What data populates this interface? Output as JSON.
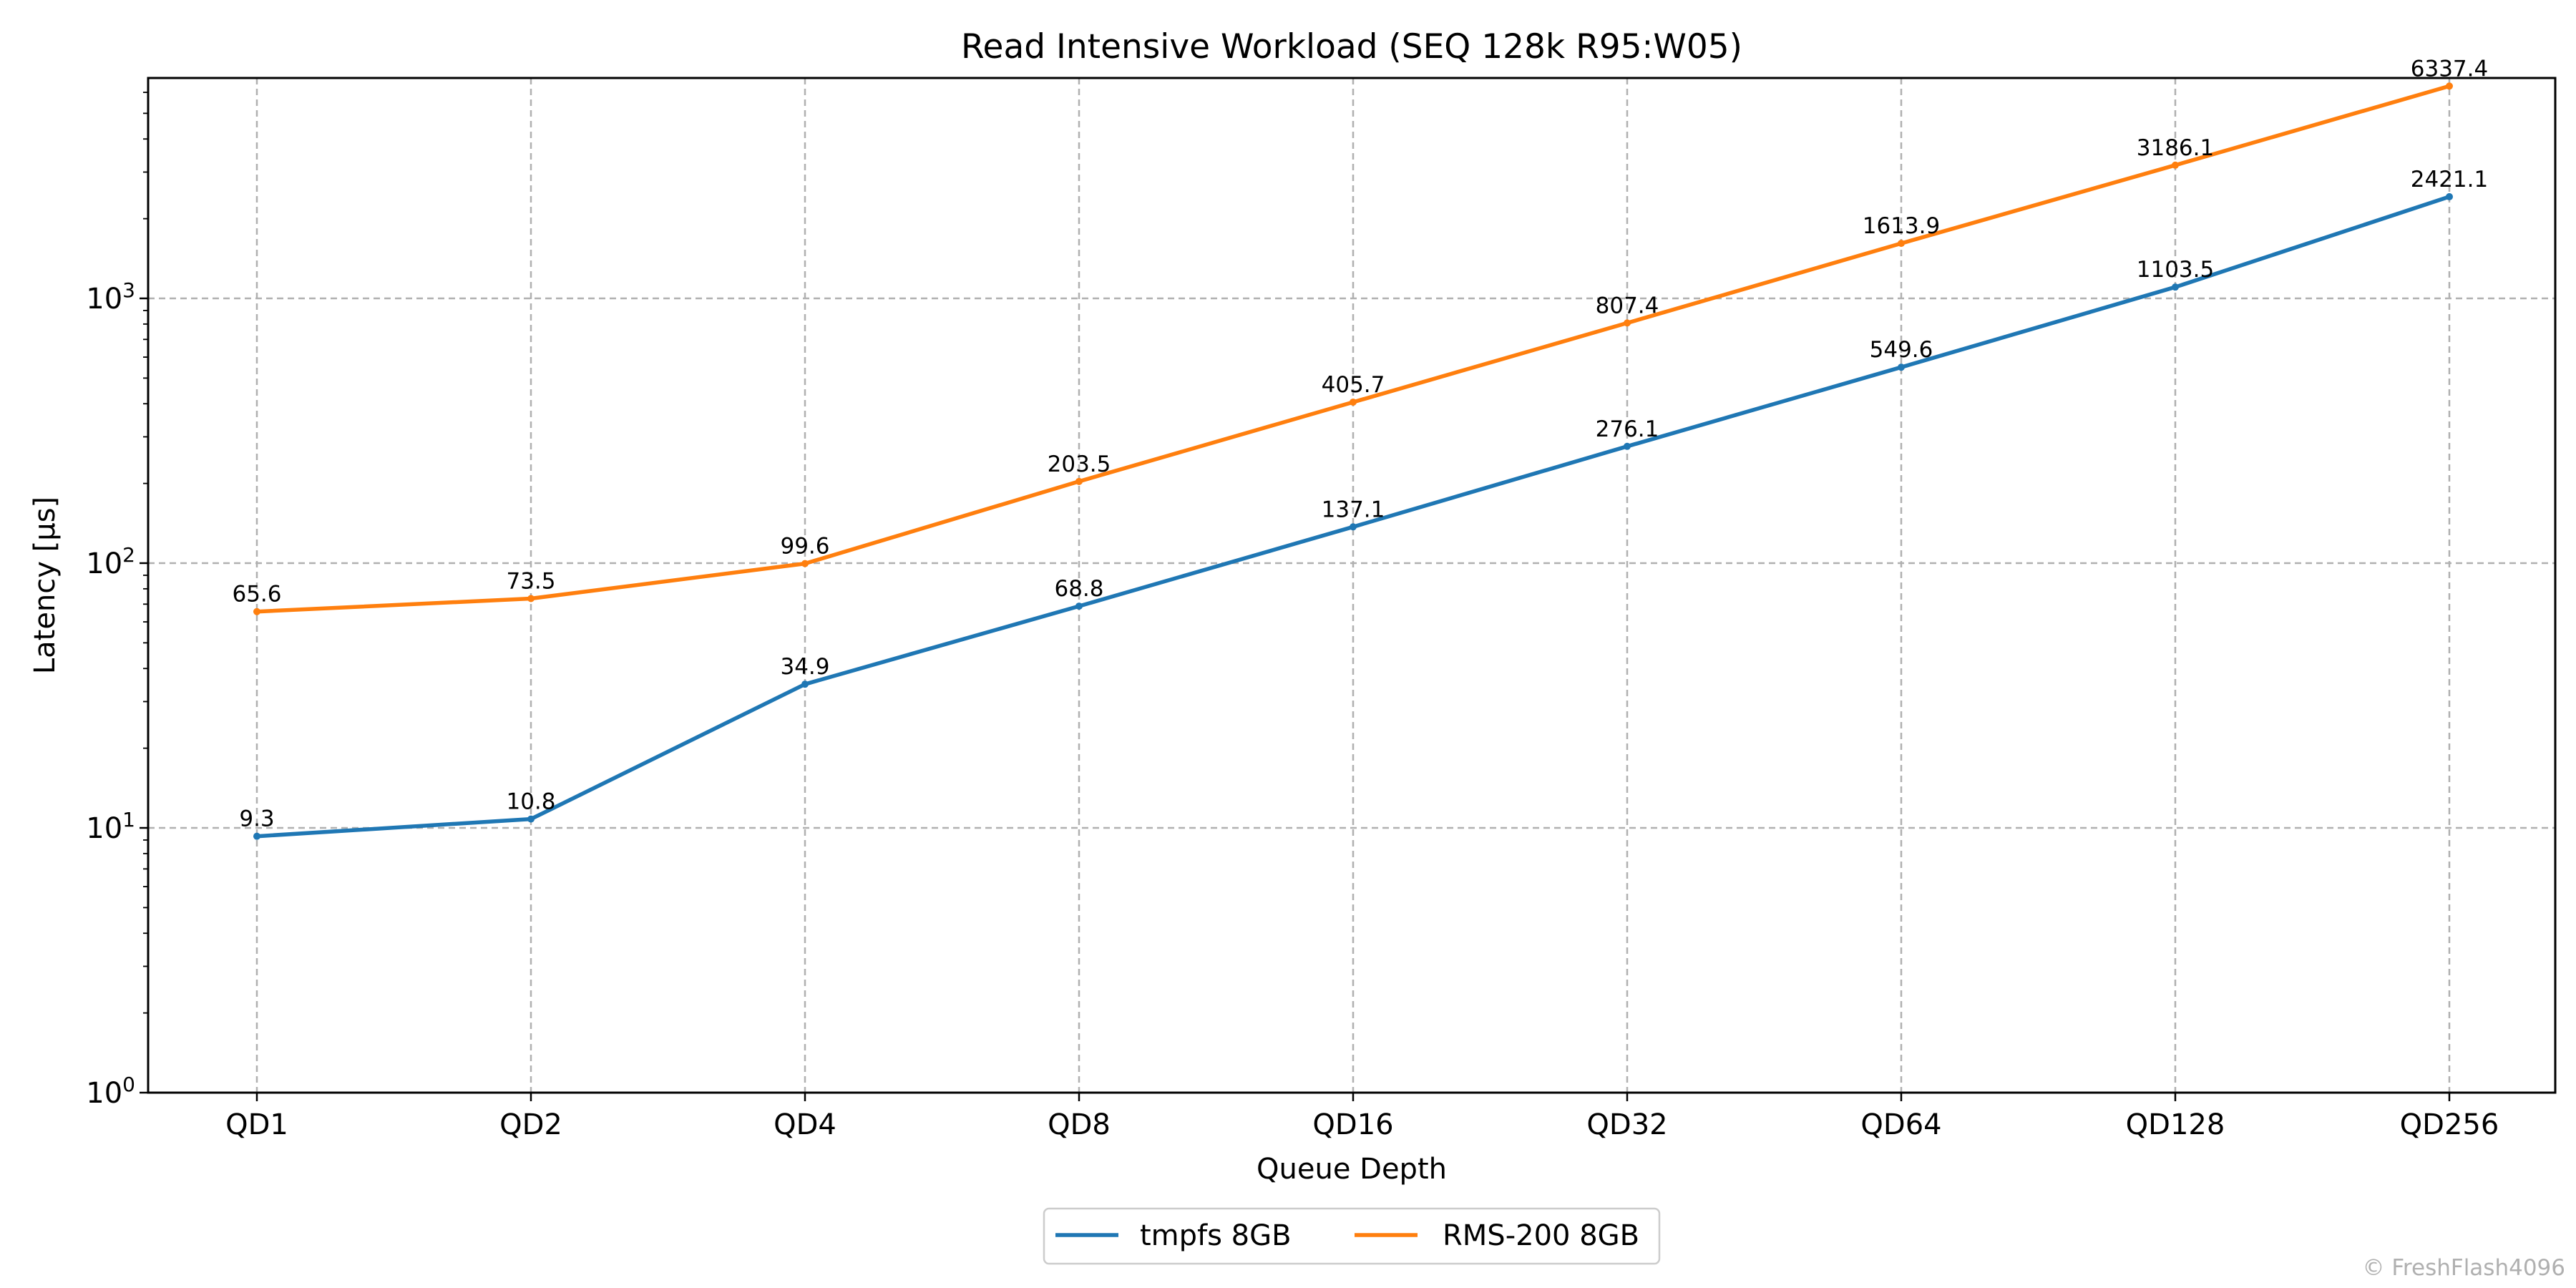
{
  "chart_data": {
    "type": "line",
    "title": "Read Intensive Workload (SEQ 128k R95:W05)",
    "xlabel": "Queue Depth",
    "ylabel": "Latency [µs]",
    "y_scale": "log",
    "ylim": [
      1,
      6337.4
    ],
    "categories": [
      "QD1",
      "QD2",
      "QD4",
      "QD8",
      "QD16",
      "QD32",
      "QD64",
      "QD128",
      "QD256"
    ],
    "series": [
      {
        "name": "tmpfs 8GB",
        "color": "#1f77b4",
        "values": [
          9.3,
          10.8,
          34.9,
          68.8,
          137.1,
          276.1,
          549.6,
          1103.5,
          2421.1
        ],
        "labels": [
          "9.3",
          "10.8",
          "34.9",
          "68.8",
          "137.1",
          "276.1",
          "549.6",
          "1103.5",
          "2421.1"
        ]
      },
      {
        "name": "RMS-200 8GB",
        "color": "#ff7f0e",
        "values": [
          65.6,
          73.5,
          99.6,
          203.5,
          405.7,
          807.4,
          1613.9,
          3186.1,
          6337.4
        ],
        "labels": [
          "65.6",
          "73.5",
          "99.6",
          "203.5",
          "405.7",
          "807.4",
          "1613.9",
          "3186.1",
          "6337.4"
        ]
      }
    ],
    "y_ticks": [
      {
        "base": "10",
        "exp": "0"
      },
      {
        "base": "10",
        "exp": "1"
      },
      {
        "base": "10",
        "exp": "2"
      },
      {
        "base": "10",
        "exp": "3"
      }
    ],
    "grid": true,
    "legend_position": "bottom-center"
  },
  "credit": "© FreshFlash4096"
}
